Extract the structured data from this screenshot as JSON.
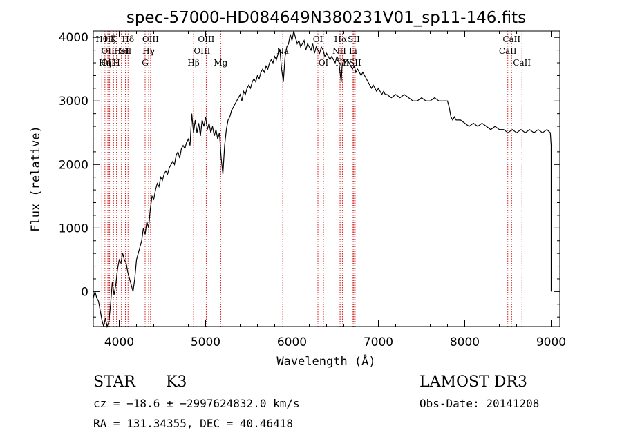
{
  "chart_data": {
    "type": "line",
    "title": "spec-57000-HD084649N380231V01_sp11-146.fits",
    "xlabel": "Wavelength (Å)",
    "ylabel": "Flux (relative)",
    "xlim": [
      3700,
      9100
    ],
    "ylim": [
      -550,
      4100
    ],
    "x_ticks": [
      4000,
      5000,
      6000,
      7000,
      8000,
      9000
    ],
    "y_ticks": [
      0,
      1000,
      2000,
      3000,
      4000
    ],
    "grid": false,
    "series": [
      {
        "points": [
          [
            3700,
            -100
          ],
          [
            3720,
            0
          ],
          [
            3740,
            -100
          ],
          [
            3760,
            -150
          ],
          [
            3780,
            -300
          ],
          [
            3800,
            -450
          ],
          [
            3820,
            -560
          ],
          [
            3840,
            -420
          ],
          [
            3860,
            -560
          ],
          [
            3880,
            -480
          ],
          [
            3900,
            -200
          ],
          [
            3920,
            150
          ],
          [
            3940,
            -50
          ],
          [
            3960,
            100
          ],
          [
            3980,
            350
          ],
          [
            4000,
            500
          ],
          [
            4020,
            450
          ],
          [
            4040,
            600
          ],
          [
            4060,
            500
          ],
          [
            4080,
            450
          ],
          [
            4100,
            300
          ],
          [
            4120,
            200
          ],
          [
            4140,
            100
          ],
          [
            4160,
            0
          ],
          [
            4180,
            200
          ],
          [
            4200,
            500
          ],
          [
            4220,
            600
          ],
          [
            4240,
            700
          ],
          [
            4260,
            800
          ],
          [
            4280,
            1000
          ],
          [
            4300,
            900
          ],
          [
            4320,
            1100
          ],
          [
            4340,
            1000
          ],
          [
            4360,
            1300
          ],
          [
            4380,
            1500
          ],
          [
            4400,
            1450
          ],
          [
            4420,
            1600
          ],
          [
            4440,
            1700
          ],
          [
            4460,
            1650
          ],
          [
            4480,
            1800
          ],
          [
            4500,
            1750
          ],
          [
            4520,
            1850
          ],
          [
            4540,
            1900
          ],
          [
            4560,
            1850
          ],
          [
            4580,
            1950
          ],
          [
            4600,
            2000
          ],
          [
            4620,
            2050
          ],
          [
            4640,
            2000
          ],
          [
            4660,
            2150
          ],
          [
            4680,
            2200
          ],
          [
            4700,
            2100
          ],
          [
            4720,
            2250
          ],
          [
            4740,
            2300
          ],
          [
            4760,
            2250
          ],
          [
            4780,
            2350
          ],
          [
            4800,
            2400
          ],
          [
            4820,
            2300
          ],
          [
            4840,
            2800
          ],
          [
            4860,
            2500
          ],
          [
            4880,
            2700
          ],
          [
            4900,
            2500
          ],
          [
            4920,
            2650
          ],
          [
            4940,
            2450
          ],
          [
            4960,
            2700
          ],
          [
            4980,
            2600
          ],
          [
            5000,
            2750
          ],
          [
            5020,
            2550
          ],
          [
            5040,
            2650
          ],
          [
            5060,
            2500
          ],
          [
            5080,
            2600
          ],
          [
            5100,
            2450
          ],
          [
            5120,
            2550
          ],
          [
            5140,
            2400
          ],
          [
            5160,
            2500
          ],
          [
            5180,
            2100
          ],
          [
            5200,
            1850
          ],
          [
            5220,
            2300
          ],
          [
            5240,
            2550
          ],
          [
            5260,
            2700
          ],
          [
            5280,
            2750
          ],
          [
            5300,
            2850
          ],
          [
            5320,
            2900
          ],
          [
            5340,
            2950
          ],
          [
            5360,
            3000
          ],
          [
            5380,
            3050
          ],
          [
            5400,
            3100
          ],
          [
            5420,
            3000
          ],
          [
            5440,
            3150
          ],
          [
            5460,
            3100
          ],
          [
            5480,
            3200
          ],
          [
            5500,
            3250
          ],
          [
            5520,
            3200
          ],
          [
            5540,
            3300
          ],
          [
            5560,
            3350
          ],
          [
            5580,
            3300
          ],
          [
            5600,
            3400
          ],
          [
            5620,
            3350
          ],
          [
            5640,
            3450
          ],
          [
            5660,
            3500
          ],
          [
            5680,
            3450
          ],
          [
            5700,
            3550
          ],
          [
            5720,
            3500
          ],
          [
            5740,
            3600
          ],
          [
            5760,
            3650
          ],
          [
            5780,
            3600
          ],
          [
            5800,
            3700
          ],
          [
            5820,
            3650
          ],
          [
            5840,
            3750
          ],
          [
            5860,
            3800
          ],
          [
            5880,
            3500
          ],
          [
            5900,
            3300
          ],
          [
            5920,
            3700
          ],
          [
            5940,
            3850
          ],
          [
            5960,
            3900
          ],
          [
            5980,
            4050
          ],
          [
            6000,
            3950
          ],
          [
            6020,
            4100
          ],
          [
            6040,
            4000
          ],
          [
            6060,
            3900
          ],
          [
            6080,
            3950
          ],
          [
            6100,
            3850
          ],
          [
            6120,
            3900
          ],
          [
            6140,
            3950
          ],
          [
            6160,
            3800
          ],
          [
            6180,
            3900
          ],
          [
            6200,
            3850
          ],
          [
            6220,
            3800
          ],
          [
            6240,
            3900
          ],
          [
            6260,
            3750
          ],
          [
            6280,
            3850
          ],
          [
            6300,
            3800
          ],
          [
            6320,
            3750
          ],
          [
            6340,
            3850
          ],
          [
            6360,
            3800
          ],
          [
            6380,
            3700
          ],
          [
            6400,
            3750
          ],
          [
            6420,
            3700
          ],
          [
            6440,
            3650
          ],
          [
            6460,
            3700
          ],
          [
            6480,
            3650
          ],
          [
            6500,
            3600
          ],
          [
            6520,
            3700
          ],
          [
            6540,
            3650
          ],
          [
            6560,
            3400
          ],
          [
            6570,
            3300
          ],
          [
            6580,
            3550
          ],
          [
            6600,
            3650
          ],
          [
            6620,
            3600
          ],
          [
            6640,
            3650
          ],
          [
            6660,
            3600
          ],
          [
            6680,
            3550
          ],
          [
            6700,
            3500
          ],
          [
            6720,
            3550
          ],
          [
            6740,
            3450
          ],
          [
            6760,
            3500
          ],
          [
            6780,
            3450
          ],
          [
            6800,
            3400
          ],
          [
            6820,
            3450
          ],
          [
            6840,
            3400
          ],
          [
            6860,
            3350
          ],
          [
            6880,
            3300
          ],
          [
            6900,
            3250
          ],
          [
            6920,
            3200
          ],
          [
            6940,
            3250
          ],
          [
            6960,
            3200
          ],
          [
            6980,
            3150
          ],
          [
            7000,
            3200
          ],
          [
            7020,
            3150
          ],
          [
            7040,
            3100
          ],
          [
            7060,
            3150
          ],
          [
            7080,
            3100
          ],
          [
            7100,
            3100
          ],
          [
            7150,
            3050
          ],
          [
            7200,
            3100
          ],
          [
            7250,
            3050
          ],
          [
            7300,
            3100
          ],
          [
            7350,
            3050
          ],
          [
            7400,
            3000
          ],
          [
            7450,
            3000
          ],
          [
            7500,
            3050
          ],
          [
            7550,
            3000
          ],
          [
            7600,
            3000
          ],
          [
            7650,
            3050
          ],
          [
            7700,
            3000
          ],
          [
            7750,
            3000
          ],
          [
            7800,
            3000
          ],
          [
            7820,
            2900
          ],
          [
            7840,
            2750
          ],
          [
            7860,
            2700
          ],
          [
            7880,
            2750
          ],
          [
            7900,
            2700
          ],
          [
            7950,
            2700
          ],
          [
            8000,
            2650
          ],
          [
            8050,
            2600
          ],
          [
            8100,
            2650
          ],
          [
            8150,
            2600
          ],
          [
            8200,
            2650
          ],
          [
            8250,
            2600
          ],
          [
            8300,
            2550
          ],
          [
            8350,
            2600
          ],
          [
            8400,
            2550
          ],
          [
            8450,
            2550
          ],
          [
            8500,
            2500
          ],
          [
            8550,
            2550
          ],
          [
            8600,
            2500
          ],
          [
            8650,
            2550
          ],
          [
            8700,
            2500
          ],
          [
            8750,
            2550
          ],
          [
            8800,
            2500
          ],
          [
            8850,
            2550
          ],
          [
            8900,
            2500
          ],
          [
            8950,
            2550
          ],
          [
            8990,
            2500
          ],
          [
            9000,
            2300
          ],
          [
            9000,
            0
          ],
          [
            9000,
            500
          ]
        ]
      }
    ],
    "lines": [
      {
        "wavelength": 3798,
        "label": "Hθ",
        "row": 0
      },
      {
        "wavelength": 3835,
        "label": "Hη",
        "row": 2
      },
      {
        "wavelength": 3869,
        "label": "OII",
        "row": 1
      },
      {
        "wavelength": 3869,
        "label": "OII",
        "row": 2
      },
      {
        "wavelength": 3889,
        "label": "Hζ",
        "row": 0
      },
      {
        "wavelength": 3934,
        "label": "K",
        "row": 0
      },
      {
        "wavelength": 3969,
        "label": "H",
        "row": 2
      },
      {
        "wavelength": 4026,
        "label": "HeI",
        "row": 1
      },
      {
        "wavelength": 4072,
        "label": "SII",
        "row": 1
      },
      {
        "wavelength": 4102,
        "label": "Hδ",
        "row": 0
      },
      {
        "wavelength": 4300,
        "label": "G",
        "row": 2
      },
      {
        "wavelength": 4340,
        "label": "Hγ",
        "row": 1
      },
      {
        "wavelength": 4363,
        "label": "OIII",
        "row": 0
      },
      {
        "wavelength": 4861,
        "label": "Hβ",
        "row": 2
      },
      {
        "wavelength": 4959,
        "label": "OIII",
        "row": 1
      },
      {
        "wavelength": 5007,
        "label": "OIII",
        "row": 0
      },
      {
        "wavelength": 5175,
        "label": "Mg",
        "row": 2
      },
      {
        "wavelength": 5893,
        "label": "Na",
        "row": 1
      },
      {
        "wavelength": 6300,
        "label": "OI",
        "row": 0
      },
      {
        "wavelength": 6364,
        "label": "OI",
        "row": 2
      },
      {
        "wavelength": 6548,
        "label": "NII",
        "row": 1
      },
      {
        "wavelength": 6563,
        "label": "Hα",
        "row": 0
      },
      {
        "wavelength": 6583,
        "label": "NII",
        "row": 2
      },
      {
        "wavelength": 6707,
        "label": "Li",
        "row": 1
      },
      {
        "wavelength": 6716,
        "label": "SII",
        "row": 0
      },
      {
        "wavelength": 6731,
        "label": "SII",
        "row": 2
      },
      {
        "wavelength": 8498,
        "label": "CaII",
        "row": 1
      },
      {
        "wavelength": 8542,
        "label": "CaII",
        "row": 0
      },
      {
        "wavelength": 8662,
        "label": "CaII",
        "row": 2
      }
    ]
  },
  "info": {
    "class": "STAR",
    "subclass": "K3",
    "survey": "LAMOST DR3",
    "cz": "cz = −18.6 ± −2997624832.0 km/s",
    "obs_date": "Obs-Date: 20141208",
    "coords": "RA = 131.34355, DEC =  40.46418"
  },
  "colors": {
    "spectrum": "#000000",
    "line_marker": "#cc0000",
    "text": "#000000"
  }
}
